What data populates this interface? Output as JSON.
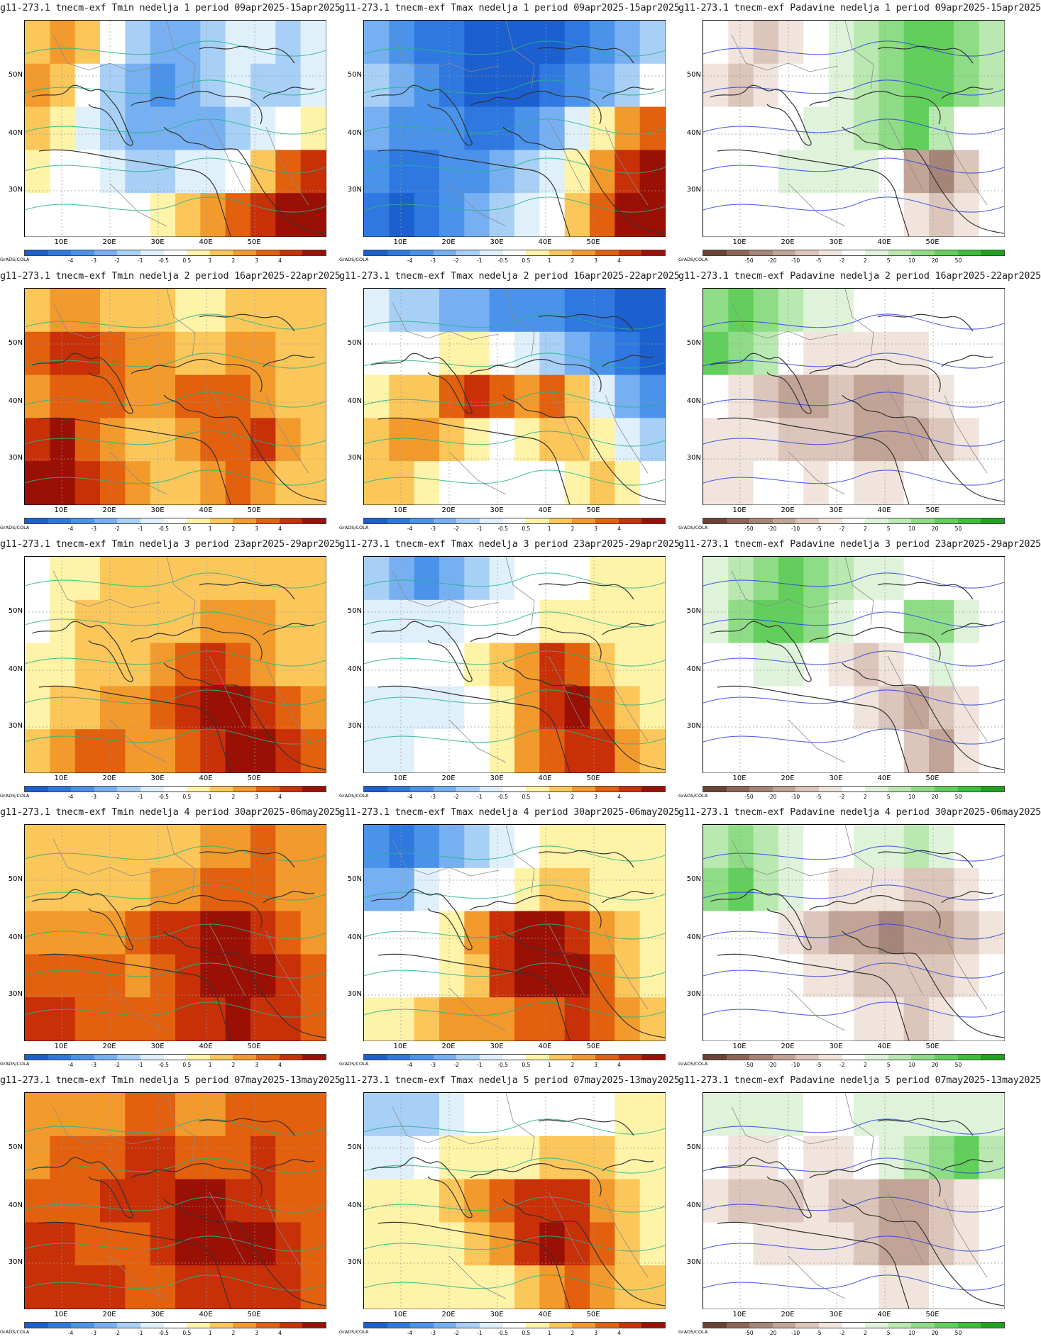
{
  "grads_label": "GrADS/COLA",
  "lat_labels": [
    "50N",
    "40N",
    "30N"
  ],
  "lon_labels": [
    "10E",
    "20E",
    "30E",
    "40E",
    "50E"
  ],
  "temp_scale": {
    "labels": [
      "-4",
      "-3",
      "-2",
      "-1",
      "-0.5",
      "0.5",
      "1",
      "2",
      "3",
      "4"
    ],
    "colors": [
      "#1c5fcf",
      "#2f78e0",
      "#4a92ea",
      "#76b0f2",
      "#a8d0f7",
      "#e0f0fb",
      "#ffffff",
      "#fff3a8",
      "#fcc75a",
      "#f39a2c",
      "#e2600e",
      "#c83008",
      "#9a1005"
    ]
  },
  "precip_scale": {
    "labels": [
      "-50",
      "-20",
      "-10",
      "-5",
      "-2",
      "2",
      "5",
      "10",
      "20",
      "50"
    ],
    "colors": [
      "#6b4234",
      "#8d6556",
      "#a68579",
      "#c2a497",
      "#dcc6bb",
      "#f0e4dc",
      "#ffffff",
      "#dff3da",
      "#b9e8b0",
      "#8fdc86",
      "#62cf5c",
      "#3cbf3a",
      "#1fa21e"
    ]
  },
  "rows": [
    {
      "titles": [
        "g11-273.1 tnecm-exf Tmin nedelja 1 period 09apr2025-15apr2025",
        "g11-273.1 tnecm-exf Tmax nedelja 1 period 09apr2025-15apr2025",
        "g11-273.1 tnecm-exf Padavine nedelja 1 period 09apr2025-15apr2025"
      ]
    },
    {
      "titles": [
        "g11-273.1 tnecm-exf Tmin nedelja 2 period 16apr2025-22apr2025",
        "g11-273.1 tnecm-exf Tmax nedelja 2 period 16apr2025-22apr2025",
        "g11-273.1 tnecm-exf Padavine nedelja 2 period 16apr2025-22apr2025"
      ]
    },
    {
      "titles": [
        "g11-273.1 tnecm-exf Tmin nedelja 3 period 23apr2025-29apr2025",
        "g11-273.1 tnecm-exf Tmax nedelja 3 period 23apr2025-29apr2025",
        "g11-273.1 tnecm-exf Padavine nedelja 3 period 23apr2025-29apr2025"
      ]
    },
    {
      "titles": [
        "g11-273.1 tnecm-exf Tmin nedelja 4 period 30apr2025-06may2025",
        "g11-273.1 tnecm-exf Tmax nedelja 4 period 30apr2025-06may2025",
        "g11-273.1 tnecm-exf Padavine nedelja 4 period 30apr2025-06may2025"
      ]
    },
    {
      "titles": [
        "g11-273.1 tnecm-exf Tmin nedelja 5 period 07may2025-13may2025",
        "g11-273.1 tnecm-exf Tmax nedelja 5 period 07may2025-13may2025",
        "g11-273.1 tnecm-exf Padavine nedelja 5 period 07may2025-13may2025"
      ]
    }
  ],
  "anomaly_patterns": {
    "tmin_week1": [
      [
        8,
        9,
        8,
        6,
        4,
        3,
        3,
        4,
        5,
        5,
        4,
        5
      ],
      [
        9,
        8,
        6,
        4,
        3,
        2,
        3,
        4,
        5,
        4,
        4,
        5
      ],
      [
        8,
        7,
        5,
        4,
        3,
        3,
        3,
        3,
        4,
        5,
        6,
        7
      ],
      [
        7,
        6,
        6,
        5,
        4,
        4,
        5,
        5,
        6,
        8,
        10,
        11
      ],
      [
        6,
        6,
        6,
        6,
        6,
        7,
        8,
        9,
        10,
        11,
        12,
        12
      ]
    ],
    "tmax_week1": [
      [
        3,
        2,
        1,
        1,
        0,
        0,
        0,
        0,
        1,
        2,
        3,
        4
      ],
      [
        4,
        3,
        2,
        1,
        0,
        0,
        0,
        1,
        2,
        3,
        4,
        6
      ],
      [
        3,
        2,
        2,
        2,
        1,
        1,
        2,
        3,
        5,
        7,
        9,
        10
      ],
      [
        2,
        1,
        1,
        2,
        2,
        3,
        4,
        5,
        7,
        9,
        11,
        12
      ],
      [
        1,
        0,
        1,
        2,
        3,
        4,
        5,
        6,
        8,
        10,
        12,
        12
      ]
    ],
    "prcp_week1": [
      [
        6,
        5,
        4,
        5,
        6,
        7,
        8,
        9,
        10,
        10,
        9,
        8
      ],
      [
        5,
        4,
        5,
        6,
        6,
        7,
        8,
        9,
        10,
        10,
        9,
        8
      ],
      [
        6,
        6,
        6,
        6,
        7,
        7,
        8,
        9,
        10,
        8,
        6,
        6
      ],
      [
        6,
        6,
        6,
        7,
        7,
        7,
        7,
        6,
        3,
        2,
        4,
        6
      ],
      [
        6,
        6,
        6,
        6,
        6,
        6,
        6,
        6,
        5,
        4,
        5,
        6
      ]
    ],
    "tmin_week2": [
      [
        8,
        9,
        9,
        8,
        8,
        8,
        7,
        7,
        8,
        8,
        8,
        8
      ],
      [
        10,
        11,
        11,
        10,
        9,
        9,
        8,
        8,
        9,
        9,
        8,
        8
      ],
      [
        9,
        10,
        10,
        10,
        9,
        9,
        10,
        10,
        10,
        9,
        8,
        8
      ],
      [
        11,
        12,
        10,
        9,
        8,
        8,
        9,
        10,
        10,
        11,
        9,
        8
      ],
      [
        12,
        12,
        11,
        10,
        9,
        8,
        8,
        9,
        10,
        9,
        8,
        8
      ]
    ],
    "tmax_week2": [
      [
        5,
        4,
        4,
        3,
        3,
        2,
        2,
        2,
        1,
        1,
        0,
        0
      ],
      [
        6,
        6,
        6,
        7,
        7,
        6,
        5,
        4,
        3,
        2,
        1,
        0
      ],
      [
        7,
        8,
        8,
        10,
        11,
        10,
        9,
        10,
        8,
        5,
        3,
        2
      ],
      [
        8,
        9,
        9,
        8,
        7,
        6,
        7,
        8,
        8,
        7,
        5,
        4
      ],
      [
        8,
        8,
        7,
        6,
        6,
        6,
        6,
        6,
        7,
        8,
        7,
        6
      ]
    ],
    "prcp_week2": [
      [
        9,
        10,
        9,
        8,
        7,
        7,
        6,
        6,
        6,
        6,
        6,
        6
      ],
      [
        10,
        9,
        8,
        6,
        5,
        5,
        5,
        5,
        5,
        6,
        6,
        6
      ],
      [
        6,
        5,
        4,
        3,
        3,
        4,
        3,
        3,
        4,
        5,
        6,
        6
      ],
      [
        5,
        5,
        5,
        4,
        4,
        4,
        3,
        3,
        3,
        4,
        5,
        6
      ],
      [
        5,
        5,
        6,
        6,
        5,
        6,
        5,
        5,
        6,
        6,
        6,
        6
      ]
    ],
    "tmin_week3": [
      [
        6,
        7,
        7,
        8,
        8,
        8,
        8,
        8,
        8,
        8,
        8,
        8
      ],
      [
        6,
        7,
        8,
        8,
        8,
        8,
        8,
        9,
        9,
        9,
        8,
        8
      ],
      [
        7,
        7,
        8,
        8,
        8,
        9,
        10,
        11,
        10,
        9,
        8,
        8
      ],
      [
        7,
        8,
        8,
        9,
        9,
        10,
        11,
        12,
        12,
        11,
        10,
        9
      ],
      [
        8,
        9,
        10,
        10,
        9,
        9,
        10,
        11,
        12,
        12,
        11,
        10
      ]
    ],
    "tmax_week3": [
      [
        4,
        3,
        2,
        3,
        4,
        5,
        6,
        6,
        6,
        7,
        7,
        7
      ],
      [
        5,
        5,
        5,
        5,
        6,
        6,
        6,
        7,
        7,
        7,
        7,
        7
      ],
      [
        6,
        6,
        6,
        6,
        7,
        8,
        9,
        11,
        10,
        8,
        7,
        7
      ],
      [
        5,
        5,
        5,
        5,
        6,
        7,
        9,
        11,
        12,
        10,
        8,
        7
      ],
      [
        5,
        5,
        6,
        6,
        6,
        7,
        9,
        10,
        11,
        11,
        9,
        8
      ]
    ],
    "prcp_week3": [
      [
        7,
        8,
        9,
        10,
        9,
        8,
        7,
        7,
        6,
        6,
        6,
        6
      ],
      [
        7,
        9,
        10,
        10,
        9,
        7,
        6,
        6,
        9,
        9,
        7,
        6
      ],
      [
        6,
        6,
        7,
        7,
        6,
        5,
        4,
        5,
        6,
        7,
        6,
        6
      ],
      [
        6,
        6,
        6,
        6,
        6,
        6,
        5,
        4,
        3,
        4,
        5,
        6
      ],
      [
        6,
        6,
        6,
        6,
        6,
        6,
        6,
        6,
        4,
        3,
        5,
        6
      ]
    ],
    "tmin_week4": [
      [
        8,
        8,
        8,
        8,
        8,
        8,
        8,
        9,
        9,
        10,
        9,
        9
      ],
      [
        8,
        8,
        8,
        8,
        8,
        9,
        9,
        10,
        10,
        10,
        9,
        9
      ],
      [
        9,
        9,
        9,
        9,
        10,
        11,
        11,
        12,
        12,
        11,
        10,
        9
      ],
      [
        10,
        10,
        10,
        10,
        9,
        10,
        11,
        12,
        12,
        12,
        11,
        10
      ],
      [
        11,
        11,
        10,
        10,
        10,
        10,
        11,
        11,
        12,
        11,
        11,
        10
      ]
    ],
    "tmax_week4": [
      [
        2,
        1,
        2,
        3,
        4,
        5,
        6,
        7,
        7,
        7,
        7,
        7
      ],
      [
        3,
        3,
        5,
        6,
        6,
        6,
        7,
        8,
        8,
        7,
        7,
        7
      ],
      [
        6,
        6,
        6,
        7,
        9,
        11,
        12,
        12,
        11,
        9,
        8,
        7
      ],
      [
        6,
        6,
        6,
        7,
        8,
        11,
        12,
        12,
        12,
        10,
        8,
        7
      ],
      [
        7,
        7,
        8,
        9,
        9,
        9,
        10,
        10,
        11,
        10,
        9,
        8
      ]
    ],
    "prcp_week4": [
      [
        8,
        9,
        8,
        7,
        6,
        6,
        7,
        7,
        8,
        7,
        6,
        6
      ],
      [
        9,
        10,
        8,
        7,
        6,
        5,
        5,
        5,
        4,
        4,
        5,
        6
      ],
      [
        6,
        6,
        6,
        5,
        4,
        3,
        3,
        2,
        3,
        3,
        4,
        5
      ],
      [
        6,
        6,
        6,
        6,
        5,
        5,
        4,
        4,
        4,
        4,
        5,
        6
      ],
      [
        6,
        6,
        6,
        6,
        6,
        6,
        5,
        5,
        4,
        5,
        6,
        6
      ]
    ],
    "tmin_week5": [
      [
        9,
        9,
        9,
        9,
        10,
        10,
        9,
        9,
        10,
        10,
        10,
        10
      ],
      [
        9,
        10,
        10,
        10,
        11,
        11,
        10,
        10,
        10,
        11,
        10,
        10
      ],
      [
        10,
        10,
        10,
        11,
        11,
        11,
        12,
        12,
        11,
        11,
        10,
        10
      ],
      [
        11,
        11,
        10,
        10,
        10,
        11,
        12,
        12,
        12,
        12,
        11,
        10
      ],
      [
        11,
        11,
        11,
        11,
        10,
        10,
        11,
        11,
        11,
        11,
        11,
        10
      ]
    ],
    "tmax_week5": [
      [
        4,
        4,
        4,
        5,
        6,
        6,
        6,
        6,
        6,
        6,
        7,
        7
      ],
      [
        5,
        5,
        6,
        7,
        7,
        7,
        7,
        8,
        8,
        8,
        7,
        7
      ],
      [
        7,
        7,
        7,
        8,
        9,
        10,
        11,
        11,
        11,
        9,
        8,
        7
      ],
      [
        7,
        7,
        7,
        7,
        8,
        9,
        11,
        12,
        11,
        10,
        8,
        7
      ],
      [
        7,
        7,
        7,
        7,
        7,
        7,
        8,
        9,
        10,
        9,
        8,
        8
      ]
    ],
    "prcp_week5": [
      [
        7,
        7,
        7,
        7,
        6,
        6,
        7,
        7,
        7,
        7,
        7,
        7
      ],
      [
        6,
        5,
        5,
        6,
        5,
        5,
        6,
        7,
        8,
        9,
        10,
        8
      ],
      [
        5,
        4,
        4,
        4,
        5,
        4,
        4,
        3,
        3,
        4,
        5,
        6
      ],
      [
        6,
        6,
        5,
        5,
        5,
        5,
        4,
        3,
        3,
        4,
        5,
        6
      ],
      [
        6,
        6,
        6,
        6,
        6,
        6,
        6,
        5,
        5,
        6,
        6,
        6
      ]
    ]
  }
}
